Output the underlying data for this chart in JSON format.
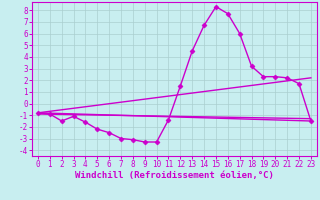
{
  "xlabel": "Windchill (Refroidissement éolien,°C)",
  "bg_color": "#c8eef0",
  "line_color": "#cc00cc",
  "xlim": [
    -0.5,
    23.5
  ],
  "ylim": [
    -4.5,
    8.7
  ],
  "xticks": [
    0,
    1,
    2,
    3,
    4,
    5,
    6,
    7,
    8,
    9,
    10,
    11,
    12,
    13,
    14,
    15,
    16,
    17,
    18,
    19,
    20,
    21,
    22,
    23
  ],
  "yticks": [
    -4,
    -3,
    -2,
    -1,
    0,
    1,
    2,
    3,
    4,
    5,
    6,
    7,
    8
  ],
  "series": [
    {
      "x": [
        0,
        1,
        2,
        3,
        4,
        5,
        6,
        7,
        8,
        9,
        10,
        11,
        12,
        13,
        14,
        15,
        16,
        17,
        18,
        19,
        20,
        21,
        22,
        23
      ],
      "y": [
        -0.8,
        -0.9,
        -1.5,
        -1.1,
        -1.6,
        -2.2,
        -2.5,
        -3.0,
        -3.1,
        -3.3,
        -3.3,
        -1.4,
        1.5,
        4.5,
        6.7,
        8.3,
        7.7,
        6.0,
        3.2,
        2.3,
        2.3,
        2.2,
        1.7,
        -1.5
      ],
      "marker": "D",
      "markersize": 2.5,
      "linewidth": 1.0
    },
    {
      "x": [
        0,
        23
      ],
      "y": [
        -0.8,
        -1.5
      ],
      "marker": null,
      "linewidth": 1.0
    },
    {
      "x": [
        0,
        23
      ],
      "y": [
        -0.9,
        -1.3
      ],
      "marker": null,
      "linewidth": 1.0
    },
    {
      "x": [
        0,
        23
      ],
      "y": [
        -0.8,
        2.2
      ],
      "marker": null,
      "linewidth": 1.0
    }
  ]
}
